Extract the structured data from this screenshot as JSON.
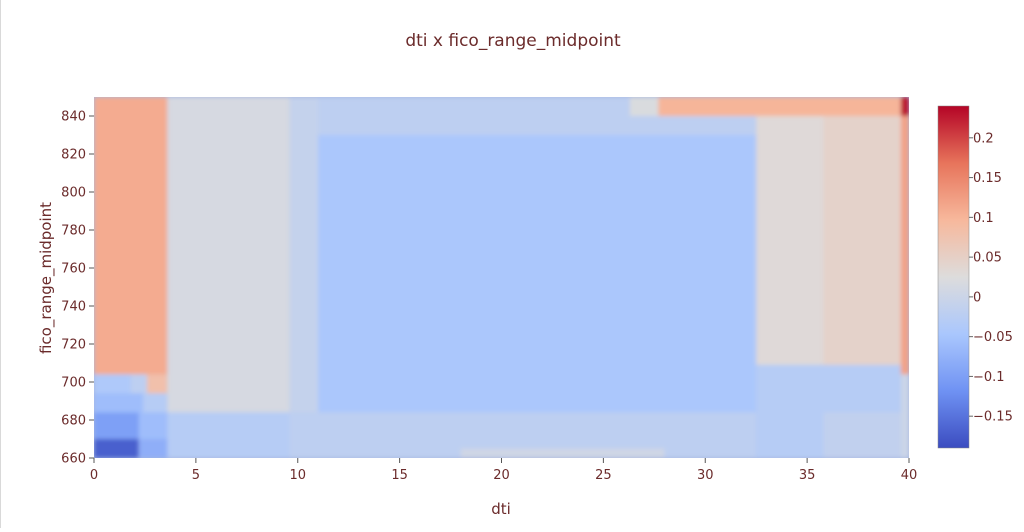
{
  "chart_data": {
    "type": "heatmap",
    "title": "dti x fico_range_midpoint",
    "xlabel": "dti",
    "ylabel": "fico_range_midpoint",
    "xlim": [
      0,
      40
    ],
    "ylim": [
      660,
      850
    ],
    "xticks": [
      0,
      5,
      10,
      15,
      20,
      25,
      30,
      35,
      40
    ],
    "yticks": [
      660,
      680,
      700,
      720,
      740,
      760,
      780,
      800,
      820,
      840
    ],
    "colorbar": {
      "range": [
        -0.19,
        0.24
      ],
      "ticks": [
        "0.2",
        "0.15",
        "0.1",
        "0.05",
        "0",
        "−0.05",
        "−0.1",
        "−0.15"
      ],
      "tick_values": [
        0.2,
        0.15,
        0.1,
        0.05,
        0,
        -0.05,
        -0.1,
        -0.15
      ],
      "colorscale": [
        "#3b4cc0",
        "#6f92f3",
        "#aac7fd",
        "#dddcdc",
        "#f7b89c",
        "#e7745b",
        "#b40426"
      ]
    },
    "cells": [
      {
        "x": [
          0,
          3.6
        ],
        "y": [
          704,
          850
        ],
        "v": 0.11
      },
      {
        "x": [
          0,
          1.8
        ],
        "y": [
          694,
          704
        ],
        "v": -0.04
      },
      {
        "x": [
          1.8,
          2.6
        ],
        "y": [
          694,
          704
        ],
        "v": -0.02
      },
      {
        "x": [
          2.6,
          3.6
        ],
        "y": [
          694,
          704
        ],
        "v": 0.08
      },
      {
        "x": [
          0,
          3.6
        ],
        "y": [
          684,
          694
        ],
        "v": -0.03
      },
      {
        "x": [
          0,
          2.4
        ],
        "y": [
          684,
          694
        ],
        "v": -0.06
      },
      {
        "x": [
          0,
          3.6
        ],
        "y": [
          670,
          684
        ],
        "v": -0.06
      },
      {
        "x": [
          0,
          2.2
        ],
        "y": [
          670,
          684
        ],
        "v": -0.1
      },
      {
        "x": [
          0,
          2.2
        ],
        "y": [
          660,
          670
        ],
        "v": -0.17
      },
      {
        "x": [
          2.2,
          4.4
        ],
        "y": [
          660,
          670
        ],
        "v": -0.08
      },
      {
        "x": [
          3.6,
          9.6
        ],
        "y": [
          684,
          850
        ],
        "v": 0.015
      },
      {
        "x": [
          3.6,
          11
        ],
        "y": [
          660,
          684
        ],
        "v": -0.03
      },
      {
        "x": [
          9.6,
          32.5
        ],
        "y": [
          684,
          850
        ],
        "v": -0.01
      },
      {
        "x": [
          11,
          32.5
        ],
        "y": [
          830,
          850
        ],
        "v": -0.02
      },
      {
        "x": [
          11,
          32.5
        ],
        "y": [
          684,
          830
        ],
        "v": -0.045
      },
      {
        "x": [
          9.6,
          32.5
        ],
        "y": [
          660,
          684
        ],
        "v": -0.02
      },
      {
        "x": [
          18,
          28
        ],
        "y": [
          660,
          665
        ],
        "v": 0.005
      },
      {
        "x": [
          26.3,
          27.7
        ],
        "y": [
          840,
          850
        ],
        "v": 0.02
      },
      {
        "x": [
          27.7,
          39.6
        ],
        "y": [
          840,
          850
        ],
        "v": 0.1
      },
      {
        "x": [
          32.5,
          39.6
        ],
        "y": [
          709,
          840
        ],
        "v": 0.03
      },
      {
        "x": [
          35.8,
          39.6
        ],
        "y": [
          709,
          840
        ],
        "v": 0.045
      },
      {
        "x": [
          32.5,
          39.6
        ],
        "y": [
          660,
          709
        ],
        "v": -0.03
      },
      {
        "x": [
          35.8,
          39.6
        ],
        "y": [
          660,
          684
        ],
        "v": -0.015
      },
      {
        "x": [
          39.6,
          40
        ],
        "y": [
          704,
          840
        ],
        "v": 0.12
      },
      {
        "x": [
          39.6,
          40
        ],
        "y": [
          840,
          850
        ],
        "v": 0.23
      },
      {
        "x": [
          39.6,
          40
        ],
        "y": [
          660,
          704
        ],
        "v": 0.0
      }
    ]
  }
}
